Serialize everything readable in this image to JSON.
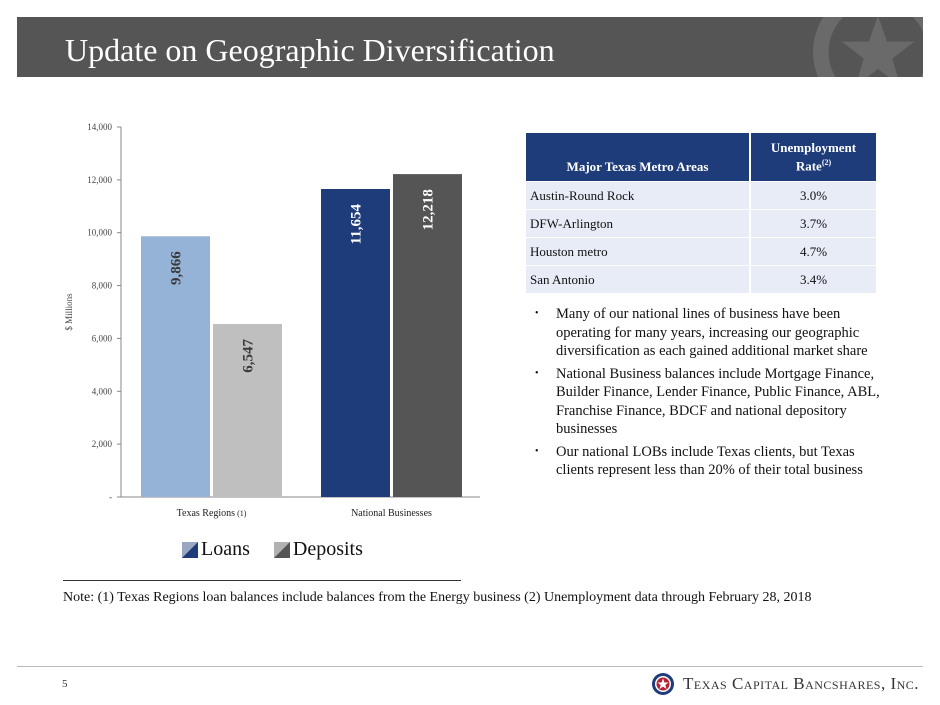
{
  "slide": {
    "title": "Update on Geographic Diversification",
    "page_number": "5",
    "note": "Note:  (1) Texas Regions loan balances include balances from the Energy business (2) Unemployment data through February 28, 2018"
  },
  "colors": {
    "loans_texas": "#95b3d7",
    "deposits_texas": "#bfbfbf",
    "loans_national": "#1f3c7a",
    "deposits_national": "#555555",
    "header_bg": "#555555"
  },
  "chart_data": {
    "type": "bar",
    "categories": [
      "Texas Regions",
      "National Businesses"
    ],
    "category_notes": [
      "(1)",
      ""
    ],
    "series": [
      {
        "name": "Loans",
        "values": [
          9866,
          11654
        ],
        "labels": [
          "9,866",
          "11,654"
        ]
      },
      {
        "name": "Deposits",
        "values": [
          6547,
          12218
        ],
        "labels": [
          "6,547",
          "12,218"
        ]
      }
    ],
    "ylabel": "$ Millions",
    "ylim": [
      0,
      14000
    ],
    "yticks": [
      0,
      2000,
      4000,
      6000,
      8000,
      10000,
      12000,
      14000
    ],
    "ytick_labels": [
      "-",
      "2,000",
      "4,000",
      "6,000",
      "8,000",
      "10,000",
      "12,000",
      "14,000"
    ],
    "legend_position": "bottom",
    "grid": false
  },
  "table": {
    "header_col1": "Major Texas Metro Areas",
    "header_col2_line1": "Unemployment",
    "header_col2_line2": "Rate",
    "header_col2_sup": "(2)",
    "rows": [
      {
        "area": "Austin-Round Rock",
        "rate": "3.0%"
      },
      {
        "area": "DFW-Arlington",
        "rate": "3.7%"
      },
      {
        "area": "Houston metro",
        "rate": "4.7%"
      },
      {
        "area": "San Antonio",
        "rate": "3.4%"
      }
    ]
  },
  "bullets": [
    "Many of our national lines of business have been operating for many years, increasing our geographic diversification as each gained additional market share",
    "National Business balances include Mortgage Finance, Builder Finance, Lender Finance, Public Finance, ABL, Franchise Finance, BDCF and national depository businesses",
    "Our national LOBs include Texas clients, but Texas clients represent less than 20% of their total business"
  ],
  "logo": {
    "text": "Texas Capital Bancshares, Inc.",
    "icon": "star-seal-icon"
  }
}
